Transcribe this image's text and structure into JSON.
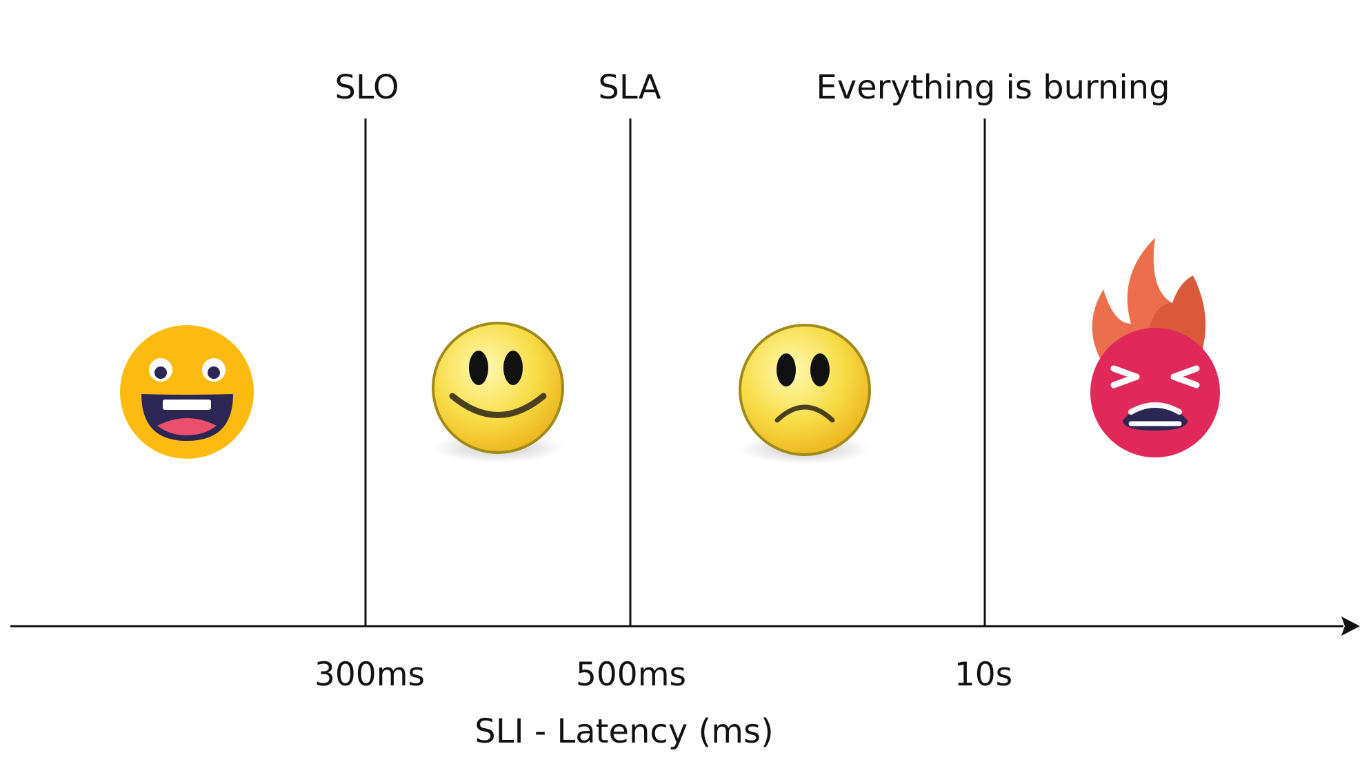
{
  "thresholds": [
    {
      "id": "slo",
      "label": "SLO",
      "tick": "300ms"
    },
    {
      "id": "sla",
      "label": "SLA",
      "tick": "500ms"
    },
    {
      "id": "burning",
      "label": "Everything is burning",
      "tick": "10s"
    }
  ],
  "axis": {
    "title": "SLI - Latency (ms)"
  },
  "emojis": [
    {
      "name": "laughing-face-icon"
    },
    {
      "name": "smiling-face-icon"
    },
    {
      "name": "frowning-face-icon"
    },
    {
      "name": "angry-burning-face-icon"
    }
  ],
  "colors": {
    "line": "#111111",
    "laughing_face": "#FDBB11",
    "classic_face": "#F5D53A",
    "angry_face": "#E0285A",
    "flame": "#EB6F4D",
    "mouth_dark": "#2B2654"
  }
}
